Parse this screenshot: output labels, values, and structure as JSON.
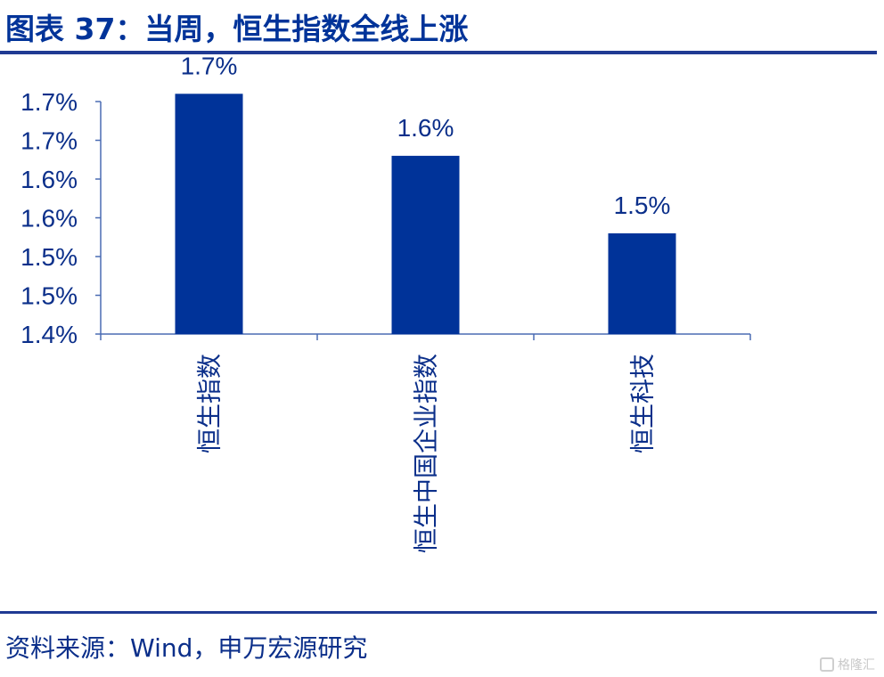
{
  "figure": {
    "title": "图表 37：当周，恒生指数全线上涨",
    "source": "资料来源：Wind，申万宏源研究",
    "watermark": "格隆汇"
  },
  "chart_data": {
    "type": "bar",
    "categories": [
      "恒生指数",
      "恒生中国企业指数",
      "恒生科技"
    ],
    "values": [
      1.71,
      1.63,
      1.53
    ],
    "data_labels": [
      "1.7%",
      "1.6%",
      "1.5%"
    ],
    "y_ticks": [
      "1.4%",
      "1.5%",
      "1.5%",
      "1.6%",
      "1.6%",
      "1.7%",
      "1.7%"
    ],
    "ylim": [
      1.4,
      1.7
    ],
    "title": "",
    "xlabel": "",
    "ylabel": "",
    "grid": false,
    "legend": "none",
    "bar_color": "#003399",
    "axis_color": "#4a6cb3",
    "text_color": "#0b2f8a"
  }
}
